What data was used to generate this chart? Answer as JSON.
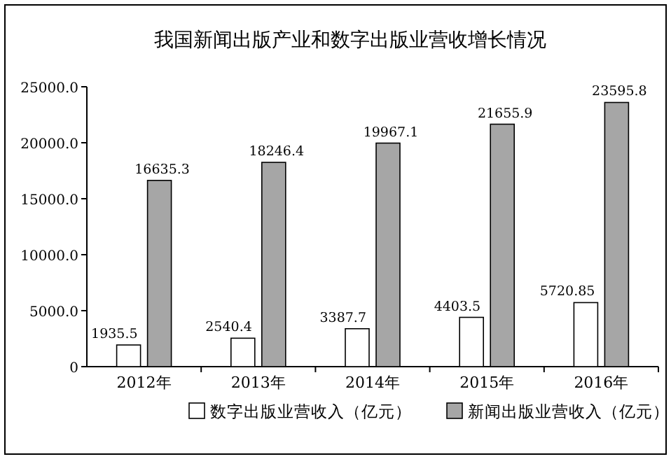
{
  "chart_data": {
    "type": "bar",
    "title": "我国新闻出版产业和数字出版业营收增长情况",
    "categories": [
      "2012年",
      "2013年",
      "2014年",
      "2015年",
      "2016年"
    ],
    "series": [
      {
        "name": "数字出版业营收入（亿元）",
        "color": "#ffffff",
        "values": [
          1935.5,
          2540.4,
          3387.7,
          4403.5,
          5720.85
        ]
      },
      {
        "name": "新闻出版业营收入（亿元）",
        "color": "#a6a6a6",
        "values": [
          16635.3,
          18246.4,
          19967.1,
          21655.9,
          23595.8
        ]
      }
    ],
    "ylim": [
      0,
      25000
    ],
    "yticks": [
      0,
      {
        "value": 5000,
        "label": "5000.0"
      },
      {
        "value": 10000,
        "label": "10000.0"
      },
      {
        "value": 15000,
        "label": "15000.0"
      },
      {
        "value": 20000,
        "label": "20000.0"
      },
      {
        "value": 25000,
        "label": "25000.0"
      }
    ],
    "data_labels": true,
    "legend": "bottom",
    "grid": false
  }
}
